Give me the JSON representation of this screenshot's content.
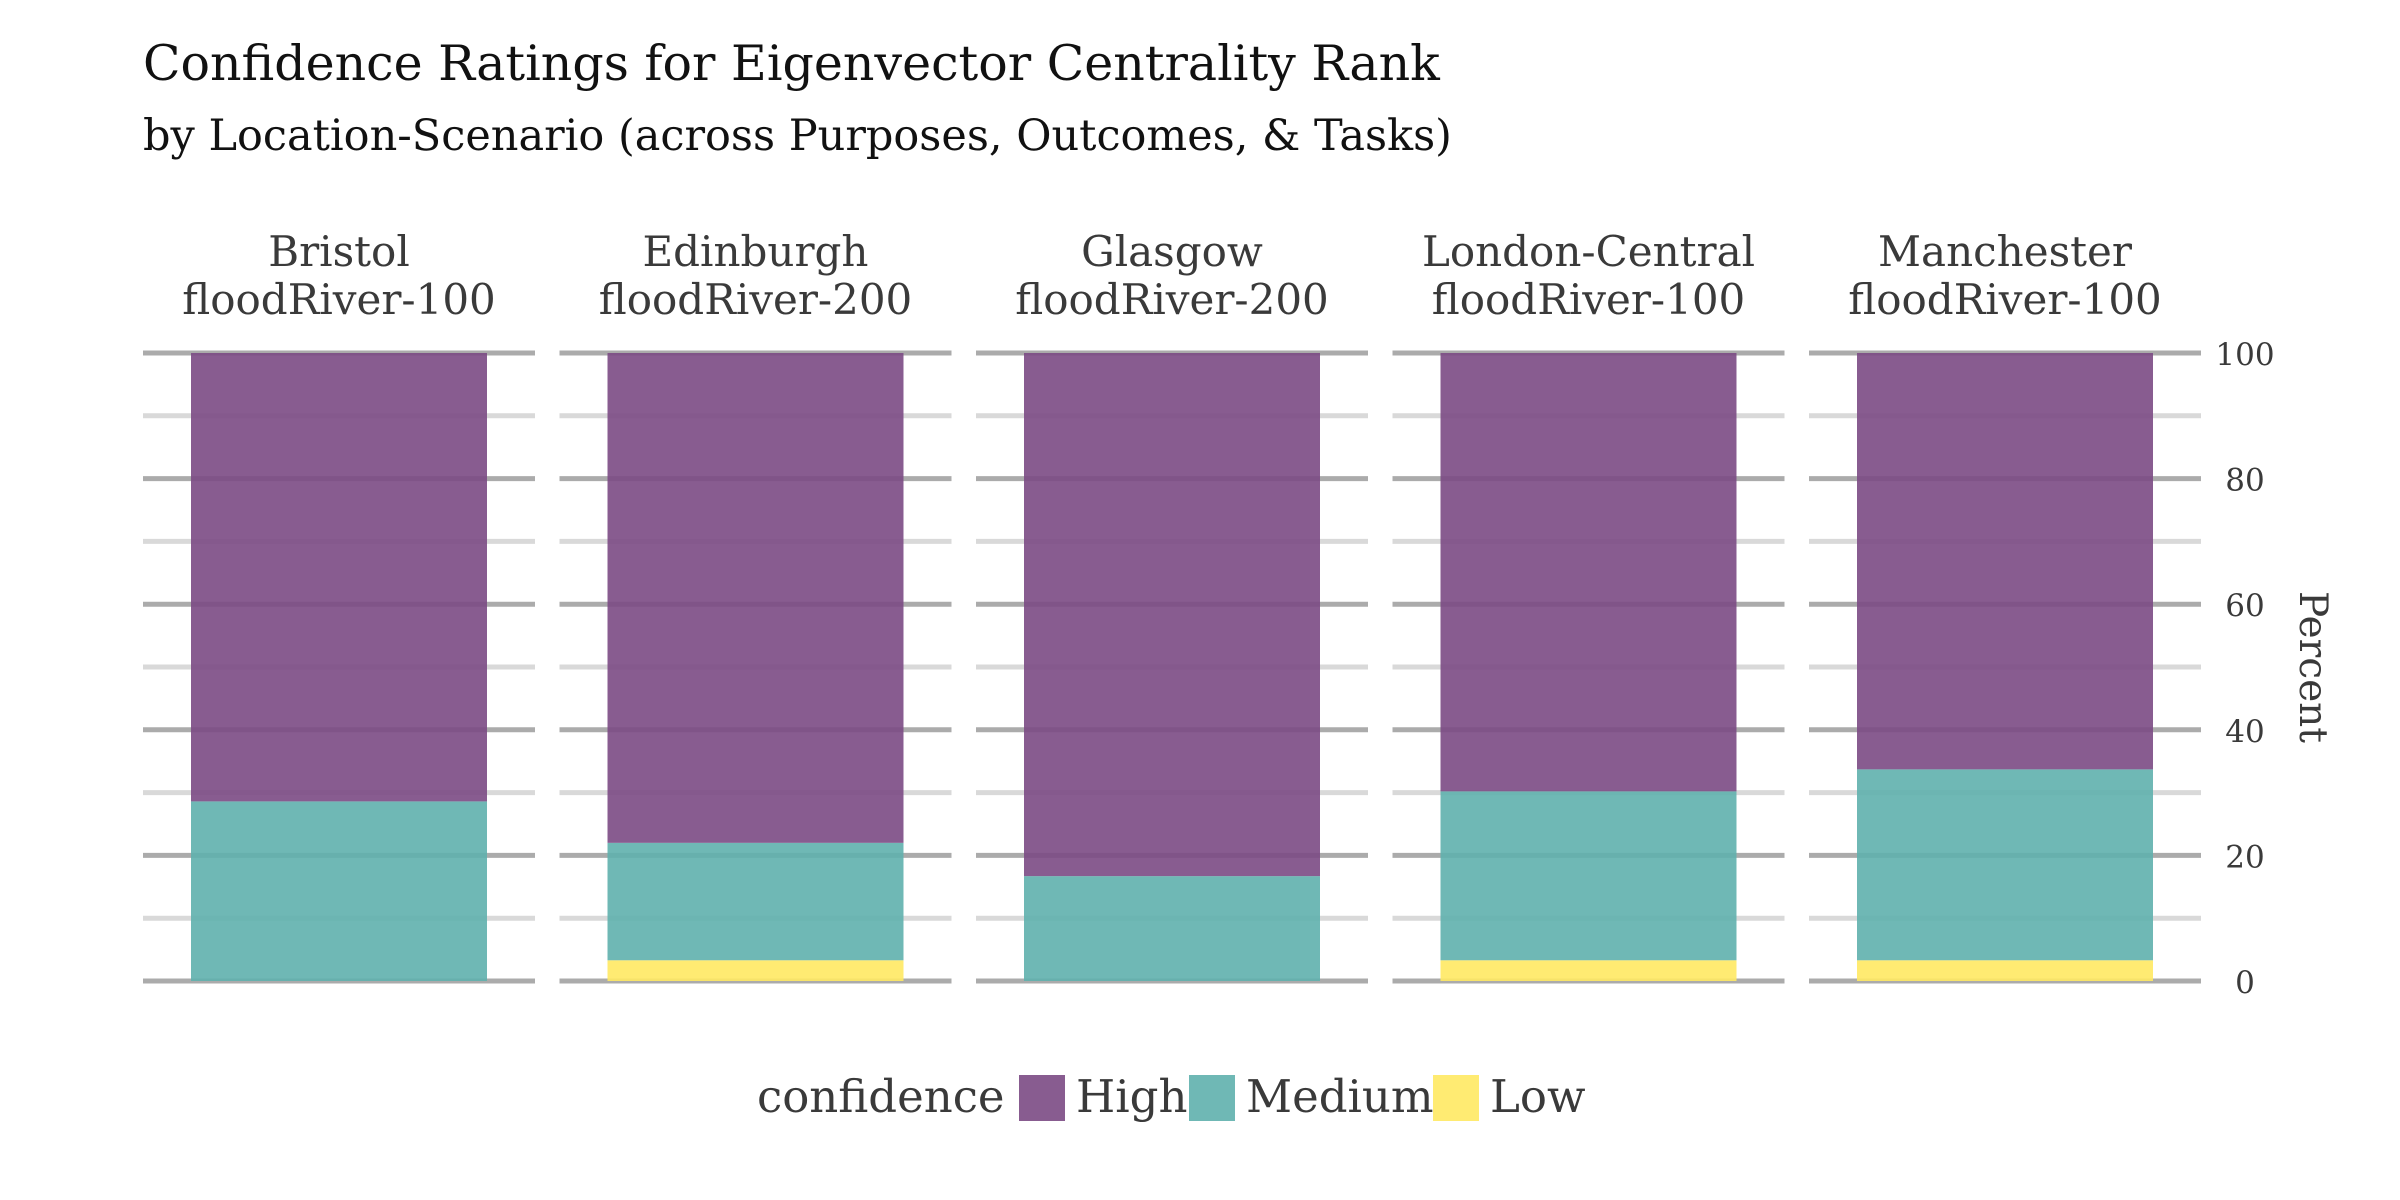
{
  "chart_data": {
    "type": "bar",
    "stacked": true,
    "faceted": true,
    "title": "Confidence Ratings for Eigenvector Centrality Rank",
    "subtitle": "by Location-Scenario (across Purposes, Outcomes, & Tasks)",
    "ylabel": "Percent",
    "ylim": [
      0,
      100
    ],
    "y_ticks": [
      0,
      20,
      40,
      60,
      80,
      100
    ],
    "y_axis_side": "right",
    "grid": true,
    "legend": {
      "title": "confidence",
      "position": "bottom",
      "entries": [
        {
          "name": "High",
          "color": "#7b4a84"
        },
        {
          "name": "Medium",
          "color": "#5fb0ad"
        },
        {
          "name": "Low",
          "color": "#ffe963"
        }
      ]
    },
    "stack_order_bottom_to_top": [
      "Low",
      "Medium",
      "High"
    ],
    "facets": [
      {
        "location": "Bristol",
        "scenario": "floodRiver-100",
        "values": {
          "High": 71.4,
          "Medium": 28.6,
          "Low": 0
        }
      },
      {
        "location": "Edinburgh",
        "scenario": "floodRiver-200",
        "values": {
          "High": 78.0,
          "Medium": 18.7,
          "Low": 3.3
        }
      },
      {
        "location": "Glasgow",
        "scenario": "floodRiver-200",
        "values": {
          "High": 83.3,
          "Medium": 16.7,
          "Low": 0
        }
      },
      {
        "location": "London-Central",
        "scenario": "floodRiver-100",
        "values": {
          "High": 69.8,
          "Medium": 26.9,
          "Low": 3.3
        }
      },
      {
        "location": "Manchester",
        "scenario": "floodRiver-100",
        "values": {
          "High": 66.3,
          "Medium": 30.4,
          "Low": 3.3
        }
      }
    ]
  }
}
